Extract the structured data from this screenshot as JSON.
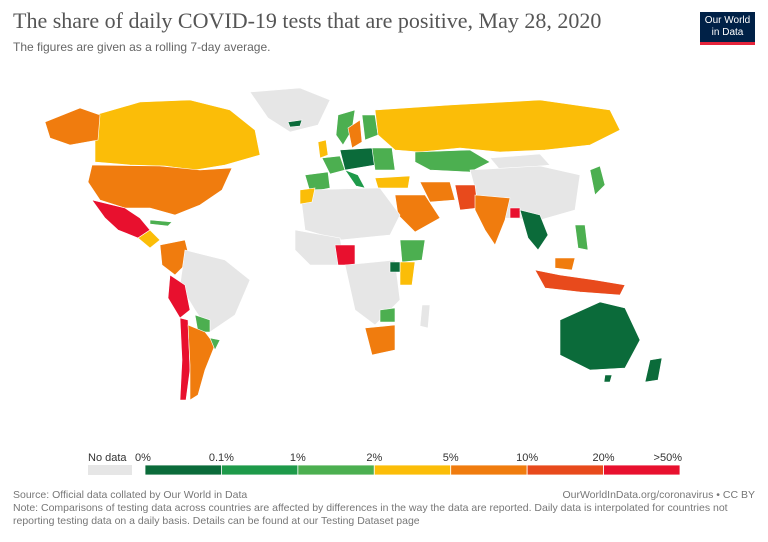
{
  "chart_title": "The share of daily COVID-19 tests that are positive, May 28, 2020",
  "chart_subtitle": "The figures are given as a rolling 7-day average.",
  "logo": {
    "line1": "Our World",
    "line2": "in Data"
  },
  "legend": {
    "no_data_label": "No data",
    "no_data_color": "#e6e6e6",
    "ticks": [
      "0%",
      "0.1%",
      "1%",
      "2%",
      "5%",
      "10%",
      "20%",
      ">50%"
    ],
    "bins": [
      {
        "color": "#0b6b3a"
      },
      {
        "color": "#1e9a4a"
      },
      {
        "color": "#4caf50"
      },
      {
        "color": "#fbbd08"
      },
      {
        "color": "#f07c0e"
      },
      {
        "color": "#e84a1c"
      },
      {
        "color": "#e8102e"
      }
    ]
  },
  "chart_data": {
    "type": "map",
    "title": "The share of daily COVID-19 tests that are positive, May 28, 2020",
    "metric": "share of daily tests positive (7-day rolling average)",
    "date": "May 28, 2020",
    "bins": [
      "0%-0.1%",
      "0.1%-1%",
      "1%-2%",
      "2%-5%",
      "5%-10%",
      "10%-20%",
      "20%->50%"
    ]
  },
  "footer": {
    "source": "Source: Official data collated by Our World in Data",
    "url_text": "OurWorldInData.org/coronavirus • CC BY",
    "note": "Note: Comparisons of testing data across countries are affected by differences in the way the data are reported. Daily data is interpolated for countries not reporting testing data on a daily basis. Details can be found at our Testing Dataset page"
  }
}
